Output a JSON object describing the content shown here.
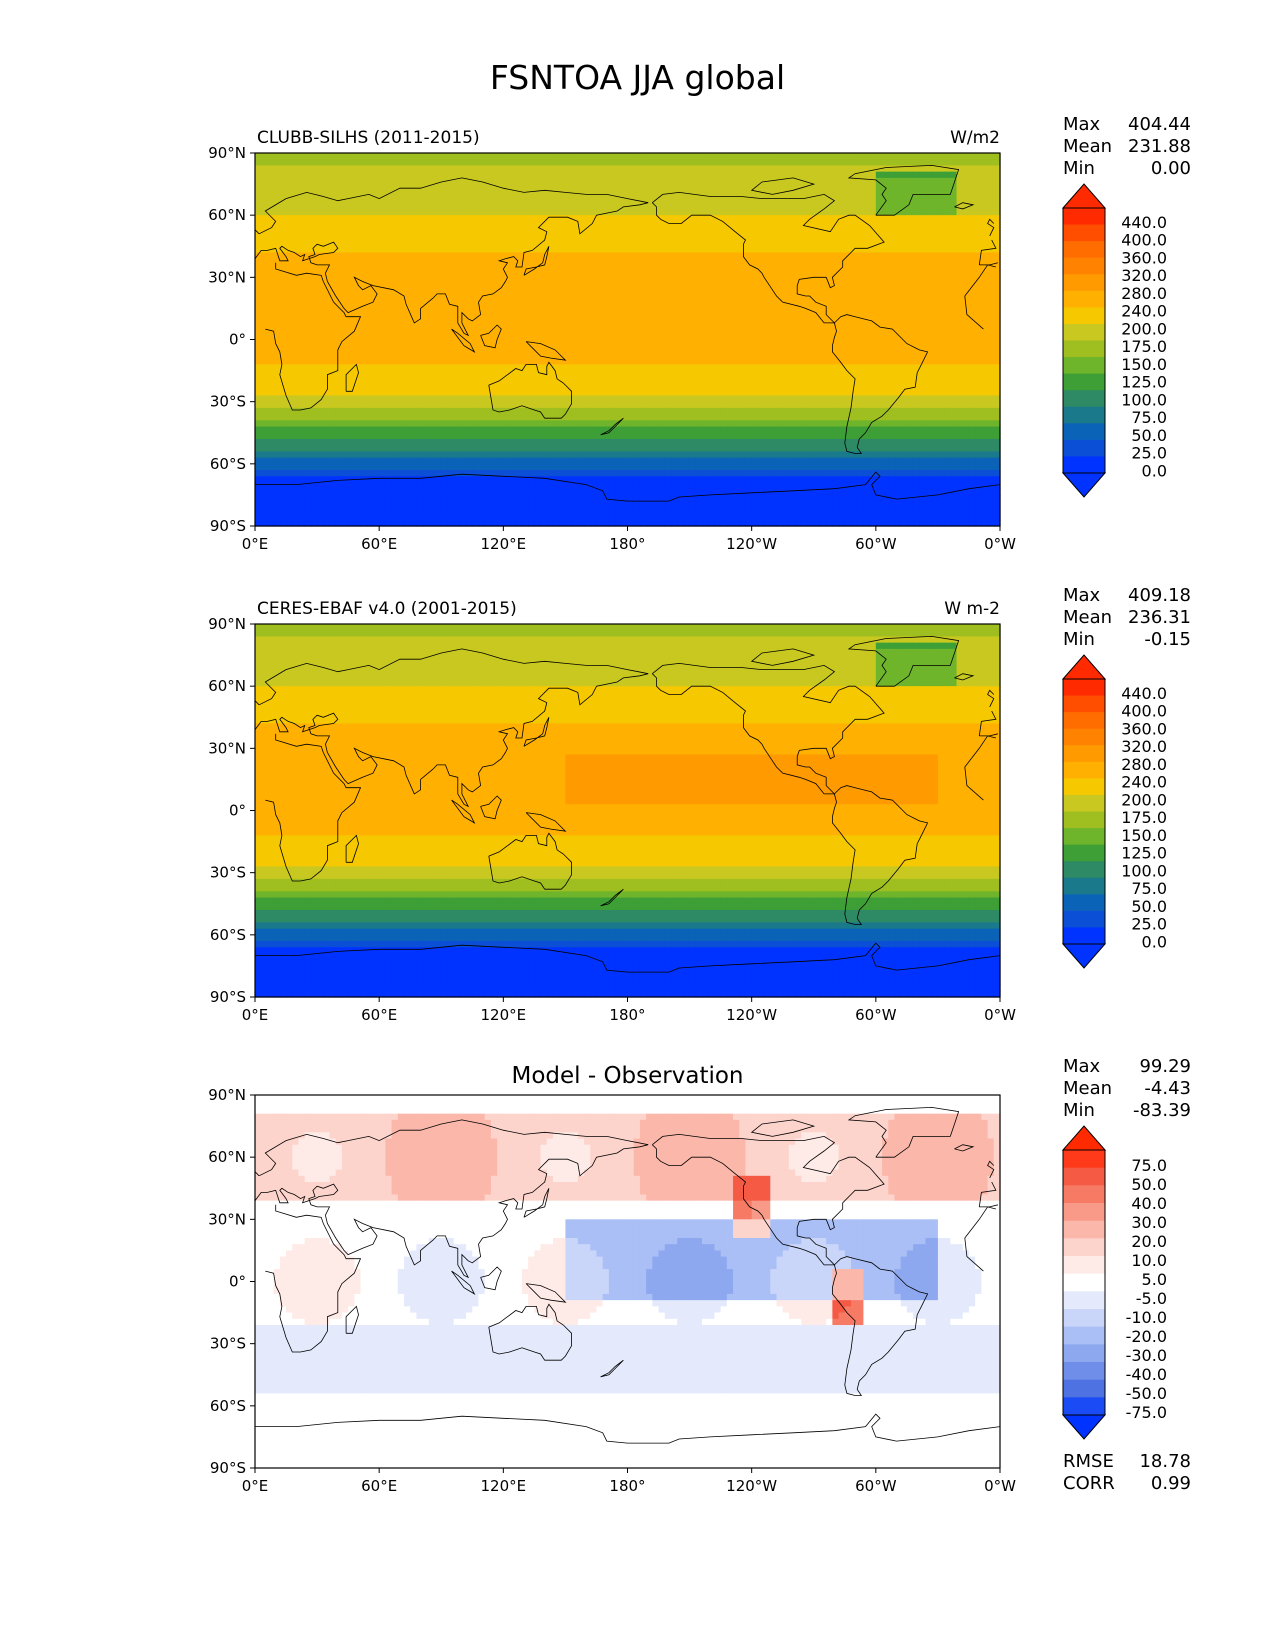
{
  "title": "FSNTOA JJA global",
  "lon_ticks": [
    "0°E",
    "60°E",
    "120°E",
    "180°",
    "120°W",
    "60°W",
    "0°W"
  ],
  "lat_ticks": [
    "90°N",
    "60°N",
    "30°N",
    "0°",
    "30°S",
    "60°S",
    "90°S"
  ],
  "panels": [
    {
      "id": "model",
      "left_title": "CLUBB-SILHS (2011-2015)",
      "center_title": "",
      "units": "W/m2",
      "stats": [
        {
          "label": "Max",
          "value": "404.44"
        },
        {
          "label": "Mean",
          "value": "231.88"
        },
        {
          "label": "Min",
          "value": "0.00"
        }
      ],
      "colorbar_labels": [
        "440.0",
        "400.0",
        "360.0",
        "320.0",
        "280.0",
        "240.0",
        "200.0",
        "175.0",
        "150.0",
        "125.0",
        "100.0",
        "75.0",
        "50.0",
        "25.0",
        "0.0"
      ],
      "colorbar_colors": [
        "#ff2a00",
        "#ff4e00",
        "#ff6d00",
        "#ff8200",
        "#ff9a00",
        "#ffb000",
        "#f5c800",
        "#c8c820",
        "#9ebf1f",
        "#6fb52b",
        "#3d9f36",
        "#2e8a64",
        "#1a7a8c",
        "#0a63b6",
        "#0a4fd6",
        "#0033ff"
      ],
      "extend_top_color": "#ff2a00",
      "extend_bottom_color": "#0033ff",
      "extra_stats": []
    },
    {
      "id": "obs",
      "left_title": "CERES-EBAF v4.0 (2001-2015)",
      "center_title": "",
      "units": "W m-2",
      "stats": [
        {
          "label": "Max",
          "value": "409.18"
        },
        {
          "label": "Mean",
          "value": "236.31"
        },
        {
          "label": "Min",
          "value": "-0.15"
        }
      ],
      "colorbar_labels": [
        "440.0",
        "400.0",
        "360.0",
        "320.0",
        "280.0",
        "240.0",
        "200.0",
        "175.0",
        "150.0",
        "125.0",
        "100.0",
        "75.0",
        "50.0",
        "25.0",
        "0.0"
      ],
      "colorbar_colors": [
        "#ff2a00",
        "#ff4e00",
        "#ff6d00",
        "#ff8200",
        "#ff9a00",
        "#ffb000",
        "#f5c800",
        "#c8c820",
        "#9ebf1f",
        "#6fb52b",
        "#3d9f36",
        "#2e8a64",
        "#1a7a8c",
        "#0a63b6",
        "#0a4fd6",
        "#0033ff"
      ],
      "extend_top_color": "#ff2a00",
      "extend_bottom_color": "#0033ff",
      "extra_stats": []
    },
    {
      "id": "diff",
      "left_title": "",
      "center_title": "Model - Observation",
      "units": "",
      "stats": [
        {
          "label": "Max",
          "value": "99.29"
        },
        {
          "label": "Mean",
          "value": "-4.43"
        },
        {
          "label": "Min",
          "value": "-83.39"
        }
      ],
      "colorbar_labels": [
        "75.0",
        "50.0",
        "40.0",
        "30.0",
        "20.0",
        "10.0",
        "5.0",
        "-5.0",
        "-10.0",
        "-20.0",
        "-30.0",
        "-40.0",
        "-50.0",
        "-75.0"
      ],
      "colorbar_colors": [
        "#ff3a1a",
        "#f55a45",
        "#f77a65",
        "#f99a88",
        "#fbb8aa",
        "#fdd4cc",
        "#feeae6",
        "#ffffff",
        "#e4eafc",
        "#c9d6fa",
        "#aabff5",
        "#8ea8f0",
        "#6f8ee9",
        "#4e72e2",
        "#1a4bf5"
      ],
      "extend_top_color": "#ff2a00",
      "extend_bottom_color": "#0033ff",
      "extra_stats": [
        {
          "label": "RMSE",
          "value": "18.78"
        },
        {
          "label": "CORR",
          "value": "0.99"
        }
      ]
    }
  ]
}
